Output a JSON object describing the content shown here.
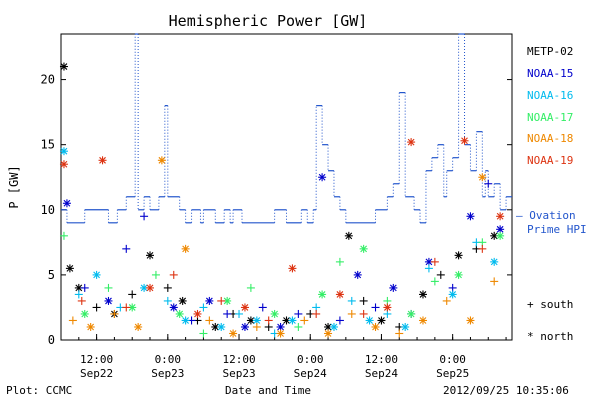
{
  "chart_data": {
    "type": "scatter",
    "title": "Hemispheric Power [GW]",
    "ylabel": "P [GW]",
    "xlabel": "Date and Time",
    "ylim": [
      0,
      23.5
    ],
    "yticks": [
      0,
      5,
      10,
      15,
      20
    ],
    "xlim": [
      "2012-09-22 06:00",
      "2012-09-25 10:00"
    ],
    "xticks": [
      {
        "x": "2012-09-22 12:00",
        "time": "12:00",
        "date": "Sep22"
      },
      {
        "x": "2012-09-23 00:00",
        "time": "0:00",
        "date": "Sep23"
      },
      {
        "x": "2012-09-23 12:00",
        "time": "12:00",
        "date": "Sep23"
      },
      {
        "x": "2012-09-24 00:00",
        "time": "0:00",
        "date": "Sep24"
      },
      {
        "x": "2012-09-24 12:00",
        "time": "12:00",
        "date": "Sep24"
      },
      {
        "x": "2012-09-25 00:00",
        "time": "0:00",
        "date": "Sep25"
      }
    ],
    "legend_position": "right",
    "series": [
      {
        "name": "METP-02",
        "color": "#000000",
        "points": [
          [
            "2012-09-22 06:30",
            21.0,
            "north"
          ],
          [
            "2012-09-22 07:30",
            5.5,
            "north"
          ],
          [
            "2012-09-22 09:00",
            4.0,
            "north"
          ],
          [
            "2012-09-22 12:00",
            2.5,
            "south"
          ],
          [
            "2012-09-22 15:00",
            2.0,
            "north"
          ],
          [
            "2012-09-22 18:00",
            3.5,
            "south"
          ],
          [
            "2012-09-22 21:00",
            6.5,
            "north"
          ],
          [
            "2012-09-23 00:00",
            4.0,
            "south"
          ],
          [
            "2012-09-23 02:30",
            3.0,
            "north"
          ],
          [
            "2012-09-23 05:00",
            1.5,
            "south"
          ],
          [
            "2012-09-23 08:00",
            1.0,
            "north"
          ],
          [
            "2012-09-23 11:00",
            2.0,
            "south"
          ],
          [
            "2012-09-23 14:00",
            1.5,
            "north"
          ],
          [
            "2012-09-23 17:00",
            1.0,
            "south"
          ],
          [
            "2012-09-23 20:00",
            1.5,
            "north"
          ],
          [
            "2012-09-24 00:00",
            2.0,
            "south"
          ],
          [
            "2012-09-24 03:00",
            1.0,
            "north"
          ],
          [
            "2012-09-24 06:30",
            8.0,
            "north"
          ],
          [
            "2012-09-24 09:00",
            3.0,
            "south"
          ],
          [
            "2012-09-24 12:00",
            1.5,
            "north"
          ],
          [
            "2012-09-24 15:00",
            1.0,
            "south"
          ],
          [
            "2012-09-24 19:00",
            3.5,
            "north"
          ],
          [
            "2012-09-24 22:00",
            5.0,
            "south"
          ],
          [
            "2012-09-25 01:00",
            6.5,
            "north"
          ],
          [
            "2012-09-25 04:00",
            7.0,
            "south"
          ],
          [
            "2012-09-25 07:00",
            8.0,
            "north"
          ]
        ]
      },
      {
        "name": "NOAA-15",
        "color": "#0000cc",
        "points": [
          [
            "2012-09-22 07:00",
            10.5,
            "north"
          ],
          [
            "2012-09-22 10:00",
            4.0,
            "south"
          ],
          [
            "2012-09-22 14:00",
            3.0,
            "north"
          ],
          [
            "2012-09-22 17:00",
            7.0,
            "south"
          ],
          [
            "2012-09-22 20:00",
            9.5,
            "south"
          ],
          [
            "2012-09-23 01:00",
            2.5,
            "north"
          ],
          [
            "2012-09-23 04:00",
            1.5,
            "south"
          ],
          [
            "2012-09-23 07:00",
            3.0,
            "north"
          ],
          [
            "2012-09-23 10:00",
            2.0,
            "south"
          ],
          [
            "2012-09-23 13:00",
            1.0,
            "north"
          ],
          [
            "2012-09-23 16:00",
            2.5,
            "south"
          ],
          [
            "2012-09-23 19:00",
            1.0,
            "north"
          ],
          [
            "2012-09-23 22:00",
            2.0,
            "south"
          ],
          [
            "2012-09-24 02:00",
            12.5,
            "north"
          ],
          [
            "2012-09-24 05:00",
            1.5,
            "south"
          ],
          [
            "2012-09-24 08:00",
            5.0,
            "north"
          ],
          [
            "2012-09-24 11:00",
            2.5,
            "south"
          ],
          [
            "2012-09-24 14:00",
            4.0,
            "north"
          ],
          [
            "2012-09-24 17:00",
            2.0,
            "south"
          ],
          [
            "2012-09-24 20:00",
            6.0,
            "north"
          ],
          [
            "2012-09-25 00:00",
            4.0,
            "south"
          ],
          [
            "2012-09-25 03:00",
            9.5,
            "north"
          ],
          [
            "2012-09-25 06:00",
            12.0,
            "south"
          ],
          [
            "2012-09-25 08:00",
            8.5,
            "north"
          ]
        ]
      },
      {
        "name": "NOAA-16",
        "color": "#00bbee",
        "points": [
          [
            "2012-09-22 06:30",
            14.5,
            "north"
          ],
          [
            "2012-09-22 09:00",
            3.5,
            "south"
          ],
          [
            "2012-09-22 12:00",
            5.0,
            "north"
          ],
          [
            "2012-09-22 16:00",
            2.5,
            "south"
          ],
          [
            "2012-09-22 20:00",
            4.0,
            "north"
          ],
          [
            "2012-09-23 00:00",
            3.0,
            "south"
          ],
          [
            "2012-09-23 03:00",
            1.5,
            "north"
          ],
          [
            "2012-09-23 06:00",
            2.5,
            "south"
          ],
          [
            "2012-09-23 09:00",
            1.0,
            "north"
          ],
          [
            "2012-09-23 12:00",
            2.0,
            "south"
          ],
          [
            "2012-09-23 15:00",
            1.5,
            "north"
          ],
          [
            "2012-09-23 18:00",
            0.5,
            "south"
          ],
          [
            "2012-09-23 21:00",
            1.5,
            "north"
          ],
          [
            "2012-09-24 01:00",
            2.5,
            "south"
          ],
          [
            "2012-09-24 04:00",
            1.0,
            "north"
          ],
          [
            "2012-09-24 07:00",
            3.0,
            "south"
          ],
          [
            "2012-09-24 10:00",
            1.5,
            "north"
          ],
          [
            "2012-09-24 13:00",
            2.0,
            "south"
          ],
          [
            "2012-09-24 16:00",
            1.0,
            "north"
          ],
          [
            "2012-09-24 20:00",
            5.5,
            "south"
          ],
          [
            "2012-09-25 00:00",
            3.5,
            "north"
          ],
          [
            "2012-09-25 04:00",
            7.5,
            "south"
          ],
          [
            "2012-09-25 07:00",
            6.0,
            "north"
          ]
        ]
      },
      {
        "name": "NOAA-17",
        "color": "#33ee66",
        "points": [
          [
            "2012-09-22 06:30",
            8.0,
            "south"
          ],
          [
            "2012-09-22 10:00",
            2.0,
            "north"
          ],
          [
            "2012-09-22 14:00",
            4.0,
            "south"
          ],
          [
            "2012-09-22 18:00",
            2.5,
            "north"
          ],
          [
            "2012-09-22 22:00",
            5.0,
            "south"
          ],
          [
            "2012-09-23 02:00",
            2.0,
            "north"
          ],
          [
            "2012-09-23 06:00",
            0.5,
            "south"
          ],
          [
            "2012-09-23 10:00",
            3.0,
            "north"
          ],
          [
            "2012-09-23 14:00",
            4.0,
            "south"
          ],
          [
            "2012-09-23 18:00",
            2.0,
            "north"
          ],
          [
            "2012-09-23 22:00",
            1.0,
            "south"
          ],
          [
            "2012-09-24 02:00",
            3.5,
            "north"
          ],
          [
            "2012-09-24 05:00",
            6.0,
            "south"
          ],
          [
            "2012-09-24 09:00",
            7.0,
            "north"
          ],
          [
            "2012-09-24 13:00",
            3.0,
            "south"
          ],
          [
            "2012-09-24 17:00",
            2.0,
            "north"
          ],
          [
            "2012-09-24 21:00",
            4.5,
            "south"
          ],
          [
            "2012-09-25 01:00",
            5.0,
            "north"
          ],
          [
            "2012-09-25 05:00",
            7.5,
            "south"
          ],
          [
            "2012-09-25 08:00",
            8.0,
            "north"
          ]
        ]
      },
      {
        "name": "NOAA-18",
        "color": "#ee8800",
        "points": [
          [
            "2012-09-22 08:00",
            1.5,
            "south"
          ],
          [
            "2012-09-22 11:00",
            1.0,
            "north"
          ],
          [
            "2012-09-22 15:00",
            2.0,
            "south"
          ],
          [
            "2012-09-22 19:00",
            1.0,
            "north"
          ],
          [
            "2012-09-22 23:00",
            13.8,
            "north"
          ],
          [
            "2012-09-23 03:00",
            7.0,
            "north"
          ],
          [
            "2012-09-23 07:00",
            1.5,
            "south"
          ],
          [
            "2012-09-23 11:00",
            0.5,
            "north"
          ],
          [
            "2012-09-23 15:00",
            1.0,
            "south"
          ],
          [
            "2012-09-23 19:00",
            0.5,
            "north"
          ],
          [
            "2012-09-23 23:00",
            1.5,
            "south"
          ],
          [
            "2012-09-24 03:00",
            0.5,
            "north"
          ],
          [
            "2012-09-24 07:00",
            2.0,
            "south"
          ],
          [
            "2012-09-24 11:00",
            1.0,
            "north"
          ],
          [
            "2012-09-24 15:00",
            0.5,
            "south"
          ],
          [
            "2012-09-24 19:00",
            1.5,
            "north"
          ],
          [
            "2012-09-24 23:00",
            3.0,
            "south"
          ],
          [
            "2012-09-25 03:00",
            1.5,
            "north"
          ],
          [
            "2012-09-25 05:00",
            12.5,
            "north"
          ],
          [
            "2012-09-25 07:00",
            4.5,
            "south"
          ]
        ]
      },
      {
        "name": "NOAA-19",
        "color": "#dd3311",
        "points": [
          [
            "2012-09-22 06:30",
            13.5,
            "north"
          ],
          [
            "2012-09-22 09:30",
            3.0,
            "south"
          ],
          [
            "2012-09-22 13:00",
            13.8,
            "north"
          ],
          [
            "2012-09-22 17:00",
            2.5,
            "south"
          ],
          [
            "2012-09-22 21:00",
            4.0,
            "north"
          ],
          [
            "2012-09-23 01:00",
            5.0,
            "south"
          ],
          [
            "2012-09-23 05:00",
            2.0,
            "north"
          ],
          [
            "2012-09-23 09:00",
            3.0,
            "south"
          ],
          [
            "2012-09-23 13:00",
            2.5,
            "north"
          ],
          [
            "2012-09-23 17:00",
            1.5,
            "south"
          ],
          [
            "2012-09-23 21:00",
            5.5,
            "north"
          ],
          [
            "2012-09-24 01:00",
            2.0,
            "south"
          ],
          [
            "2012-09-24 05:00",
            3.5,
            "north"
          ],
          [
            "2012-09-24 09:00",
            2.0,
            "south"
          ],
          [
            "2012-09-24 13:00",
            2.5,
            "north"
          ],
          [
            "2012-09-24 17:00",
            15.2,
            "north"
          ],
          [
            "2012-09-24 21:00",
            6.0,
            "south"
          ],
          [
            "2012-09-25 02:00",
            15.3,
            "north"
          ],
          [
            "2012-09-25 05:00",
            7.0,
            "south"
          ],
          [
            "2012-09-25 08:00",
            9.5,
            "north"
          ]
        ]
      }
    ],
    "ovation": {
      "name": "Ovation Prime HPI",
      "color": "#2255cc",
      "steps": [
        [
          "2012-09-22 06:00",
          10
        ],
        [
          "2012-09-22 07:00",
          9
        ],
        [
          "2012-09-22 10:00",
          10
        ],
        [
          "2012-09-22 14:00",
          9
        ],
        [
          "2012-09-22 15:30",
          10
        ],
        [
          "2012-09-22 17:00",
          11
        ],
        [
          "2012-09-22 18:30",
          23.5
        ],
        [
          "2012-09-22 19:00",
          10
        ],
        [
          "2012-09-22 20:00",
          11
        ],
        [
          "2012-09-22 21:00",
          10
        ],
        [
          "2012-09-22 22:30",
          11
        ],
        [
          "2012-09-22 23:30",
          18
        ],
        [
          "2012-09-23 00:00",
          11
        ],
        [
          "2012-09-23 02:00",
          10
        ],
        [
          "2012-09-23 03:00",
          9
        ],
        [
          "2012-09-23 04:00",
          10
        ],
        [
          "2012-09-23 05:30",
          9
        ],
        [
          "2012-09-23 06:00",
          10
        ],
        [
          "2012-09-23 08:00",
          9
        ],
        [
          "2012-09-23 09:30",
          10
        ],
        [
          "2012-09-23 10:30",
          9
        ],
        [
          "2012-09-23 11:00",
          10
        ],
        [
          "2012-09-23 12:30",
          9
        ],
        [
          "2012-09-23 18:00",
          10
        ],
        [
          "2012-09-23 20:00",
          9
        ],
        [
          "2012-09-23 22:30",
          10
        ],
        [
          "2012-09-23 23:30",
          9
        ],
        [
          "2012-09-24 00:30",
          10
        ],
        [
          "2012-09-24 01:00",
          18
        ],
        [
          "2012-09-24 02:00",
          15
        ],
        [
          "2012-09-24 03:00",
          13
        ],
        [
          "2012-09-24 04:00",
          11
        ],
        [
          "2012-09-24 05:00",
          10
        ],
        [
          "2012-09-24 06:00",
          9
        ],
        [
          "2012-09-24 11:00",
          10
        ],
        [
          "2012-09-24 13:00",
          11
        ],
        [
          "2012-09-24 14:00",
          12
        ],
        [
          "2012-09-24 15:00",
          19
        ],
        [
          "2012-09-24 16:00",
          11
        ],
        [
          "2012-09-24 17:30",
          10
        ],
        [
          "2012-09-24 18:30",
          9
        ],
        [
          "2012-09-24 19:30",
          13
        ],
        [
          "2012-09-24 20:30",
          14
        ],
        [
          "2012-09-24 21:30",
          15
        ],
        [
          "2012-09-24 22:30",
          11
        ],
        [
          "2012-09-24 23:00",
          13
        ],
        [
          "2012-09-25 00:00",
          14
        ],
        [
          "2012-09-25 01:00",
          23.5
        ],
        [
          "2012-09-25 02:00",
          15
        ],
        [
          "2012-09-25 03:00",
          13
        ],
        [
          "2012-09-25 04:00",
          16
        ],
        [
          "2012-09-25 05:00",
          11
        ],
        [
          "2012-09-25 05:30",
          13
        ],
        [
          "2012-09-25 06:00",
          11
        ],
        [
          "2012-09-25 07:00",
          12
        ],
        [
          "2012-09-25 08:00",
          10
        ],
        [
          "2012-09-25 09:00",
          11
        ],
        [
          "2012-09-25 10:00",
          11
        ]
      ]
    }
  },
  "legend": {
    "items": [
      {
        "label": "METP-02",
        "color": "#000000"
      },
      {
        "label": "NOAA-15",
        "color": "#0000cc"
      },
      {
        "label": "NOAA-16",
        "color": "#00bbee"
      },
      {
        "label": "NOAA-17",
        "color": "#33ee66"
      },
      {
        "label": "NOAA-18",
        "color": "#ee8800"
      },
      {
        "label": "NOAA-19",
        "color": "#dd3311"
      }
    ],
    "ovation_line1": "— Ovation",
    "ovation_line2": "Prime HPI",
    "south_label": "+ south",
    "north_label": "* north"
  },
  "footer": {
    "plot_credit": "Plot: CCMC",
    "timestamp": "2012/09/25 10:35:06"
  }
}
